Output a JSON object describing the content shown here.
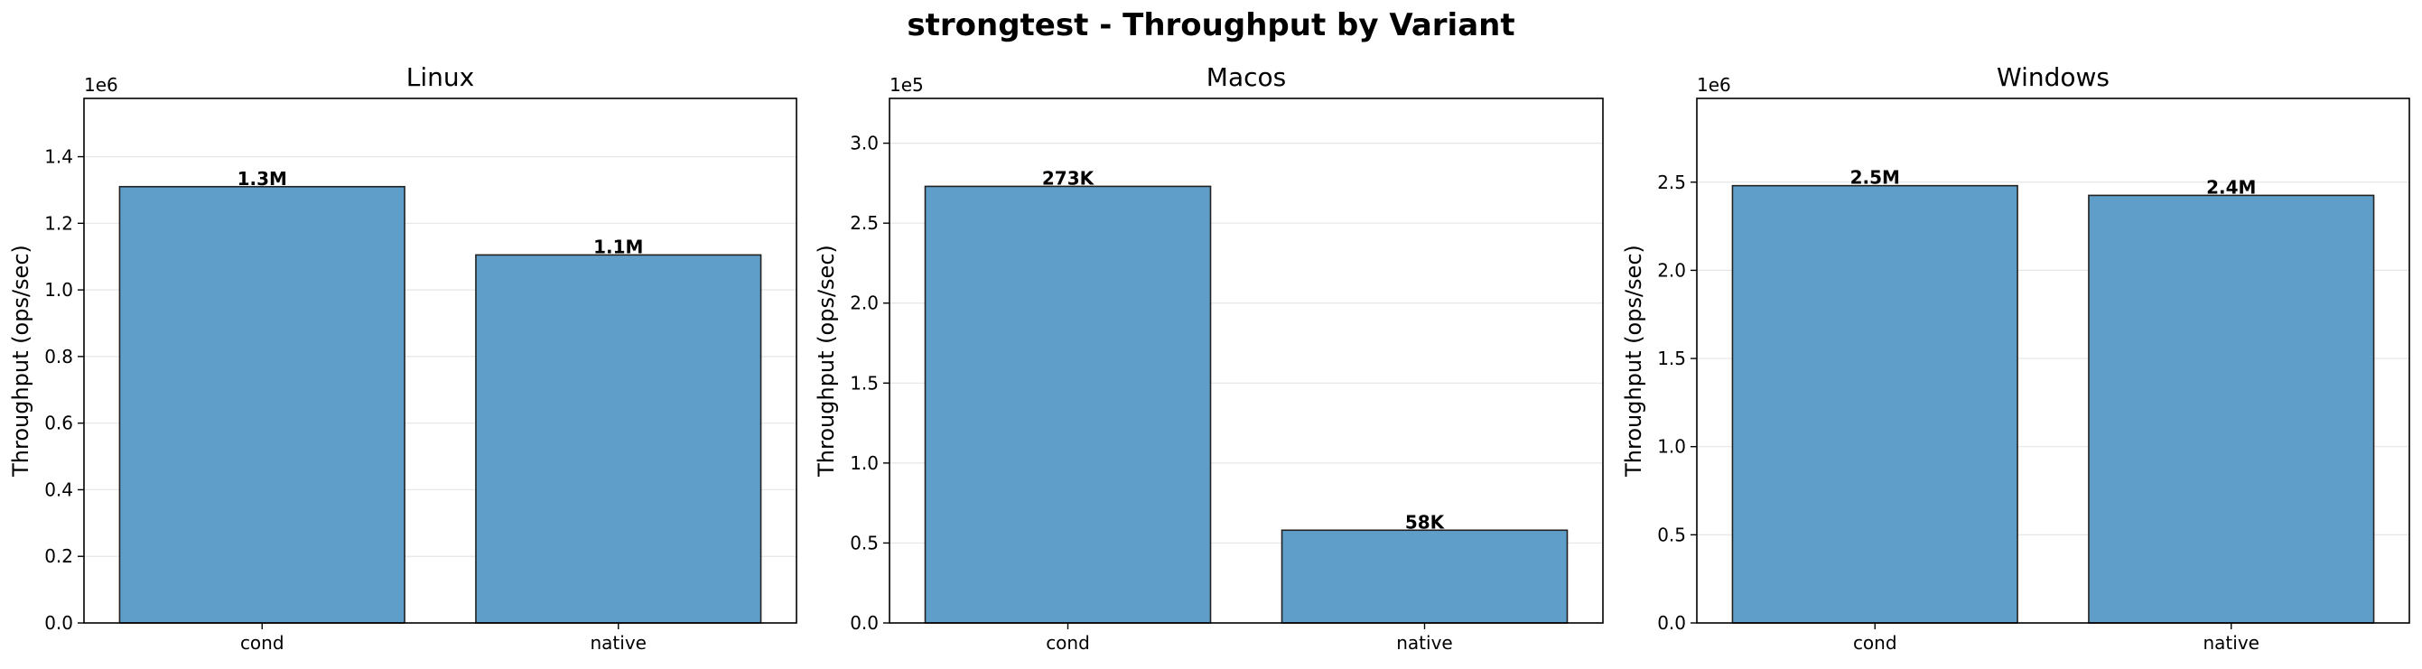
{
  "figure": {
    "title": "strongtest - Throughput by Variant"
  },
  "chart_data": [
    {
      "type": "bar",
      "title": "Linux",
      "categories": [
        "cond",
        "native"
      ],
      "values": [
        1310000,
        1105000
      ],
      "value_labels": [
        "1.3M",
        "1.1M"
      ],
      "xlabel": "",
      "ylabel": "Throughput (ops/sec)",
      "ylim": [
        0,
        1575000
      ],
      "yticks": [
        0,
        200000,
        400000,
        600000,
        800000,
        1000000,
        1200000,
        1400000
      ],
      "ytick_labels": [
        "0.0",
        "0.2",
        "0.4",
        "0.6",
        "0.8",
        "1.0",
        "1.2",
        "1.4"
      ],
      "offset_label": "1e6",
      "grid": "y",
      "bar_color": "#5f9ec9"
    },
    {
      "type": "bar",
      "title": "Macos",
      "categories": [
        "cond",
        "native"
      ],
      "values": [
        273000,
        58000
      ],
      "value_labels": [
        "273K",
        "58K"
      ],
      "xlabel": "",
      "ylabel": "Throughput (ops/sec)",
      "ylim": [
        0,
        328000
      ],
      "yticks": [
        0,
        50000,
        100000,
        150000,
        200000,
        250000,
        300000
      ],
      "ytick_labels": [
        "0.0",
        "0.5",
        "1.0",
        "1.5",
        "2.0",
        "2.5",
        "3.0"
      ],
      "offset_label": "1e5",
      "grid": "y",
      "bar_color": "#5f9ec9"
    },
    {
      "type": "bar",
      "title": "Windows",
      "categories": [
        "cond",
        "native"
      ],
      "values": [
        2480000,
        2425000
      ],
      "value_labels": [
        "2.5M",
        "2.4M"
      ],
      "xlabel": "",
      "ylabel": "Throughput (ops/sec)",
      "ylim": [
        0,
        2975000
      ],
      "yticks": [
        0,
        500000,
        1000000,
        1500000,
        2000000,
        2500000
      ],
      "ytick_labels": [
        "0.0",
        "0.5",
        "1.0",
        "1.5",
        "2.0",
        "2.5"
      ],
      "offset_label": "1e6",
      "grid": "y",
      "bar_color": "#5f9ec9"
    }
  ]
}
